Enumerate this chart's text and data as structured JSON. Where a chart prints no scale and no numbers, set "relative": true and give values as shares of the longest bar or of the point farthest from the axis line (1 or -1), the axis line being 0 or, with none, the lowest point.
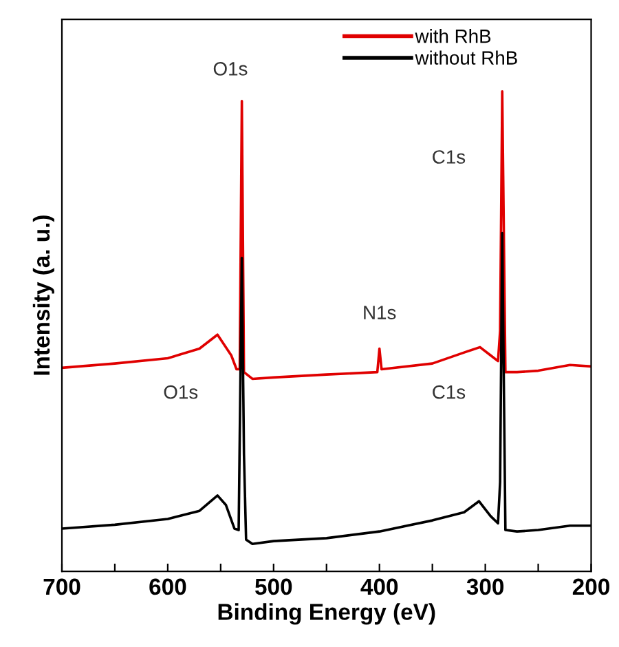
{
  "chart_data": {
    "type": "line",
    "relative": true,
    "xlabel": "Binding Energy (eV)",
    "ylabel": "Intensity (a. u.)",
    "xlim": [
      700,
      200
    ],
    "xticks": [
      700,
      {
        "value": 650,
        "label": null
      },
      600,
      {
        "value": 550,
        "label": null
      },
      500,
      {
        "value": 450,
        "label": null
      },
      400,
      {
        "value": 350,
        "label": null
      },
      300,
      {
        "value": 250,
        "label": null
      },
      200
    ],
    "legend": "top right",
    "grid": false,
    "marker": "none",
    "line_style": "solid",
    "series": [
      {
        "name": "with RhB",
        "color": "#e00000",
        "x": [
          700,
          650,
          600,
          570,
          553,
          540,
          535,
          532,
          530,
          528,
          520,
          500,
          450,
          402,
          400,
          398,
          350,
          320,
          305,
          295,
          288,
          286,
          284,
          281,
          270,
          250,
          220,
          200
        ],
        "values": [
          0.424,
          0.433,
          0.444,
          0.464,
          0.493,
          0.45,
          0.421,
          0.421,
          0.98,
          0.415,
          0.401,
          0.404,
          0.41,
          0.415,
          0.464,
          0.421,
          0.433,
          0.456,
          0.467,
          0.45,
          0.438,
          0.501,
          1.0,
          0.415,
          0.415,
          0.418,
          0.43,
          0.427
        ]
      },
      {
        "name": "without RhB",
        "color": "#000000",
        "x": [
          700,
          650,
          600,
          570,
          553,
          545,
          537,
          533,
          532,
          530,
          528,
          526,
          520,
          500,
          450,
          400,
          350,
          320,
          306,
          295,
          288,
          286,
          284,
          281,
          270,
          250,
          220,
          200
        ],
        "values": [
          0.089,
          0.097,
          0.109,
          0.126,
          0.158,
          0.138,
          0.089,
          0.086,
          0.278,
          0.653,
          0.244,
          0.066,
          0.057,
          0.063,
          0.069,
          0.083,
          0.106,
          0.123,
          0.146,
          0.115,
          0.1,
          0.186,
          0.705,
          0.086,
          0.083,
          0.086,
          0.095,
          0.095
        ]
      }
    ],
    "annotations": [
      {
        "text": "O1s",
        "x": 530,
        "y": 0.98
      },
      {
        "text": "C1s",
        "x": 284,
        "y": 0.86
      },
      {
        "text": "N1s",
        "x": 400,
        "y": 0.464
      },
      {
        "text": "O1s",
        "x": 530,
        "y": 0.37
      },
      {
        "text": "C1s",
        "x": 284,
        "y": 0.37
      }
    ]
  }
}
